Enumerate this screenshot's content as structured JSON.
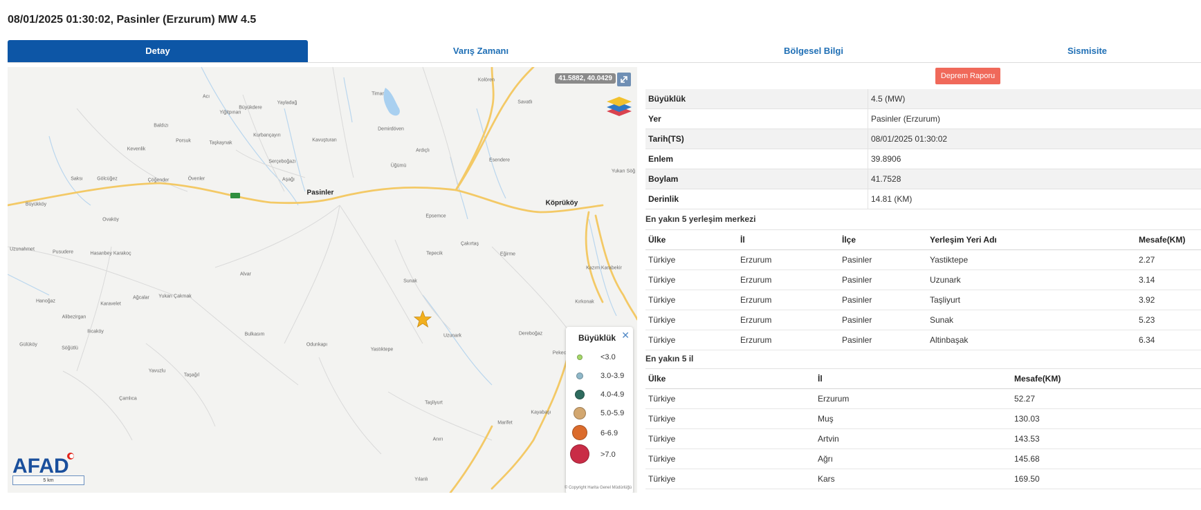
{
  "title": "08/01/2025 01:30:02, Pasinler (Erzurum) MW 4.5",
  "tabs": [
    {
      "label": "Detay",
      "active": true
    },
    {
      "label": "Varış Zamanı",
      "active": false
    },
    {
      "label": "Bölgesel Bilgi",
      "active": false
    },
    {
      "label": "Sismisite",
      "active": false
    }
  ],
  "map": {
    "coordinates": "41.5882, 40.0429",
    "expand_icon": "expand-icon",
    "layers_icon": "layers-icon",
    "epicenter_icon": "star-icon",
    "towns": [
      "Pasinler",
      "Köprüköy"
    ],
    "places": [
      "Kolören",
      "Timar",
      "Savatlı",
      "Acı",
      "Büyükdere",
      "Yayladağ",
      "Yiğitpınarı",
      "Baldızı",
      "Porsuk",
      "Taşkaynak",
      "Kurbançayırı",
      "Kavuşturan",
      "Demirdöven",
      "Kevenlik",
      "Serçeboğazı",
      "Ardıçlı",
      "Esendere",
      "Üğümü",
      "Saksı",
      "Gölcüğez",
      "Çöğender",
      "Övenler",
      "Aşağı",
      "Yukarı Söğ",
      "Büyükköy",
      "Epsemce",
      "Ovaköy",
      "Uzunahmet",
      "Pusudere",
      "Hasanbey Karakoç",
      "Tepecik",
      "Çakırtaş",
      "Eğirme",
      "Kazım Karabekir",
      "Alvar",
      "Sunak",
      "Hanoğaz",
      "Karavelet",
      "Ağcalar",
      "Yukarı Çakmak",
      "Kırkonak",
      "Alibezirgan",
      "Ilıcaköy",
      "Bulkasım",
      "Odunkapı",
      "Yastıktepe",
      "Uzunark",
      "Dereboğaz",
      "Pekecik",
      "Gülüköy",
      "Söğütlü",
      "Yavuzlu",
      "Taşağıl",
      "Çamlıca",
      "Taşliyurt",
      "Kayabaşı",
      "Marifet",
      "Anırı",
      "Yılanlı"
    ],
    "afad_logo_text": "AFAD",
    "scale_label": "5 km",
    "copyright": "© Copyright Harita Genel Müdürlüğü"
  },
  "legend": {
    "title": "Büyüklük",
    "close_symbol": "✕",
    "items": [
      {
        "label": "<3.0",
        "color": "#a6d96a"
      },
      {
        "label": "3.0-3.9",
        "color": "#8fb8c9"
      },
      {
        "label": "4.0-4.9",
        "color": "#2e6b5e"
      },
      {
        "label": "5.0-5.9",
        "color": "#d2a770"
      },
      {
        "label": "6-6.9",
        "color": "#db6b2c"
      },
      {
        "label": ">7.0",
        "color": "#c92c46"
      }
    ]
  },
  "report_button": "Deprem Raporu",
  "details": [
    {
      "key": "Büyüklük",
      "value": "4.5 (MW)"
    },
    {
      "key": "Yer",
      "value": "Pasinler (Erzurum)"
    },
    {
      "key": "Tarih(TS)",
      "value": "08/01/2025 01:30:02"
    },
    {
      "key": "Enlem",
      "value": "39.8906"
    },
    {
      "key": "Boylam",
      "value": "41.7528"
    },
    {
      "key": "Derinlik",
      "value": "14.81 (KM)"
    }
  ],
  "nearest_settlements": {
    "title": "En yakın 5 yerleşim merkezi",
    "headers": [
      "Ülke",
      "İl",
      "İlçe",
      "Yerleşim Yeri Adı",
      "Mesafe(KM)"
    ],
    "rows": [
      [
        "Türkiye",
        "Erzurum",
        "Pasinler",
        "Yastiktepe",
        "2.27"
      ],
      [
        "Türkiye",
        "Erzurum",
        "Pasinler",
        "Uzunark",
        "3.14"
      ],
      [
        "Türkiye",
        "Erzurum",
        "Pasinler",
        "Taşliyurt",
        "3.92"
      ],
      [
        "Türkiye",
        "Erzurum",
        "Pasinler",
        "Sunak",
        "5.23"
      ],
      [
        "Türkiye",
        "Erzurum",
        "Pasinler",
        "Altinbaşak",
        "6.34"
      ]
    ]
  },
  "nearest_provinces": {
    "title": "En yakın 5 il",
    "headers": [
      "Ülke",
      "İl",
      "Mesafe(KM)"
    ],
    "rows": [
      [
        "Türkiye",
        "Erzurum",
        "52.27"
      ],
      [
        "Türkiye",
        "Muş",
        "130.03"
      ],
      [
        "Türkiye",
        "Artvin",
        "143.53"
      ],
      [
        "Türkiye",
        "Ağrı",
        "145.68"
      ],
      [
        "Türkiye",
        "Kars",
        "169.50"
      ]
    ]
  },
  "colors": {
    "tab_active": "#0d56a6",
    "tab_text": "#1f6fb5",
    "report_button": "#f0695a",
    "road": "#f3c966",
    "water": "#a9d0f0",
    "epicenter": "#f2b01e"
  }
}
